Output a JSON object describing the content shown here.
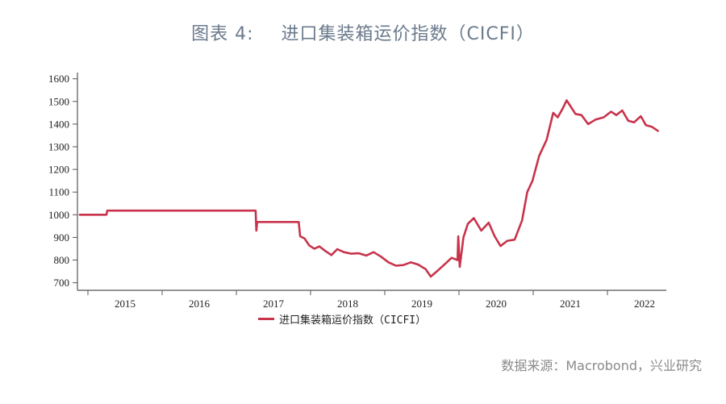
{
  "title": {
    "figure_number": "图表 4:",
    "text": "进口集装箱运价指数（CICFI）"
  },
  "legend": {
    "label": "进口集装箱运价指数（CICFI）",
    "color": "#c8334b"
  },
  "source": "数据来源：Macrobond，兴业研究",
  "chart_data": {
    "type": "line",
    "title": "进口集装箱运价指数（CICFI）",
    "xlabel": "",
    "ylabel": "",
    "ylim": [
      700,
      1600
    ],
    "yticks": [
      700,
      800,
      900,
      1000,
      1100,
      1200,
      1300,
      1400,
      1500,
      1600
    ],
    "xticks": [
      "2015",
      "2016",
      "2017",
      "2018",
      "2019",
      "2020",
      "2021",
      "2022"
    ],
    "grid": false,
    "legend_position": "bottom",
    "series": [
      {
        "name": "进口集装箱运价指数（CICFI）",
        "color": "#c8334b",
        "points": [
          [
            2014.89,
            1000
          ],
          [
            2015.25,
            1000
          ],
          [
            2015.26,
            1018
          ],
          [
            2017.26,
            1018
          ],
          [
            2017.27,
            930
          ],
          [
            2017.28,
            968
          ],
          [
            2017.84,
            968
          ],
          [
            2017.86,
            905
          ],
          [
            2017.92,
            895
          ],
          [
            2017.98,
            865
          ],
          [
            2018.05,
            850
          ],
          [
            2018.12,
            860
          ],
          [
            2018.2,
            840
          ],
          [
            2018.28,
            822
          ],
          [
            2018.36,
            848
          ],
          [
            2018.45,
            835
          ],
          [
            2018.55,
            828
          ],
          [
            2018.65,
            830
          ],
          [
            2018.75,
            820
          ],
          [
            2018.85,
            835
          ],
          [
            2018.95,
            815
          ],
          [
            2019.05,
            790
          ],
          [
            2019.15,
            775
          ],
          [
            2019.25,
            778
          ],
          [
            2019.35,
            790
          ],
          [
            2019.45,
            780
          ],
          [
            2019.55,
            760
          ],
          [
            2019.62,
            727
          ],
          [
            2019.72,
            755
          ],
          [
            2019.82,
            785
          ],
          [
            2019.9,
            810
          ],
          [
            2019.98,
            800
          ],
          [
            2019.99,
            905
          ],
          [
            2020.01,
            770
          ],
          [
            2020.06,
            900
          ],
          [
            2020.12,
            960
          ],
          [
            2020.2,
            985
          ],
          [
            2020.3,
            930
          ],
          [
            2020.4,
            965
          ],
          [
            2020.48,
            905
          ],
          [
            2020.56,
            862
          ],
          [
            2020.65,
            885
          ],
          [
            2020.75,
            890
          ],
          [
            2020.85,
            975
          ],
          [
            2020.92,
            1100
          ],
          [
            2020.99,
            1150
          ],
          [
            2021.08,
            1260
          ],
          [
            2021.18,
            1330
          ],
          [
            2021.27,
            1450
          ],
          [
            2021.33,
            1430
          ],
          [
            2021.4,
            1470
          ],
          [
            2021.45,
            1505
          ],
          [
            2021.5,
            1480
          ],
          [
            2021.57,
            1445
          ],
          [
            2021.65,
            1440
          ],
          [
            2021.74,
            1400
          ],
          [
            2021.84,
            1420
          ],
          [
            2021.95,
            1430
          ],
          [
            2022.05,
            1455
          ],
          [
            2022.12,
            1440
          ],
          [
            2022.2,
            1460
          ],
          [
            2022.28,
            1415
          ],
          [
            2022.36,
            1408
          ],
          [
            2022.45,
            1435
          ],
          [
            2022.52,
            1395
          ],
          [
            2022.6,
            1388
          ],
          [
            2022.68,
            1370
          ]
        ]
      }
    ]
  }
}
